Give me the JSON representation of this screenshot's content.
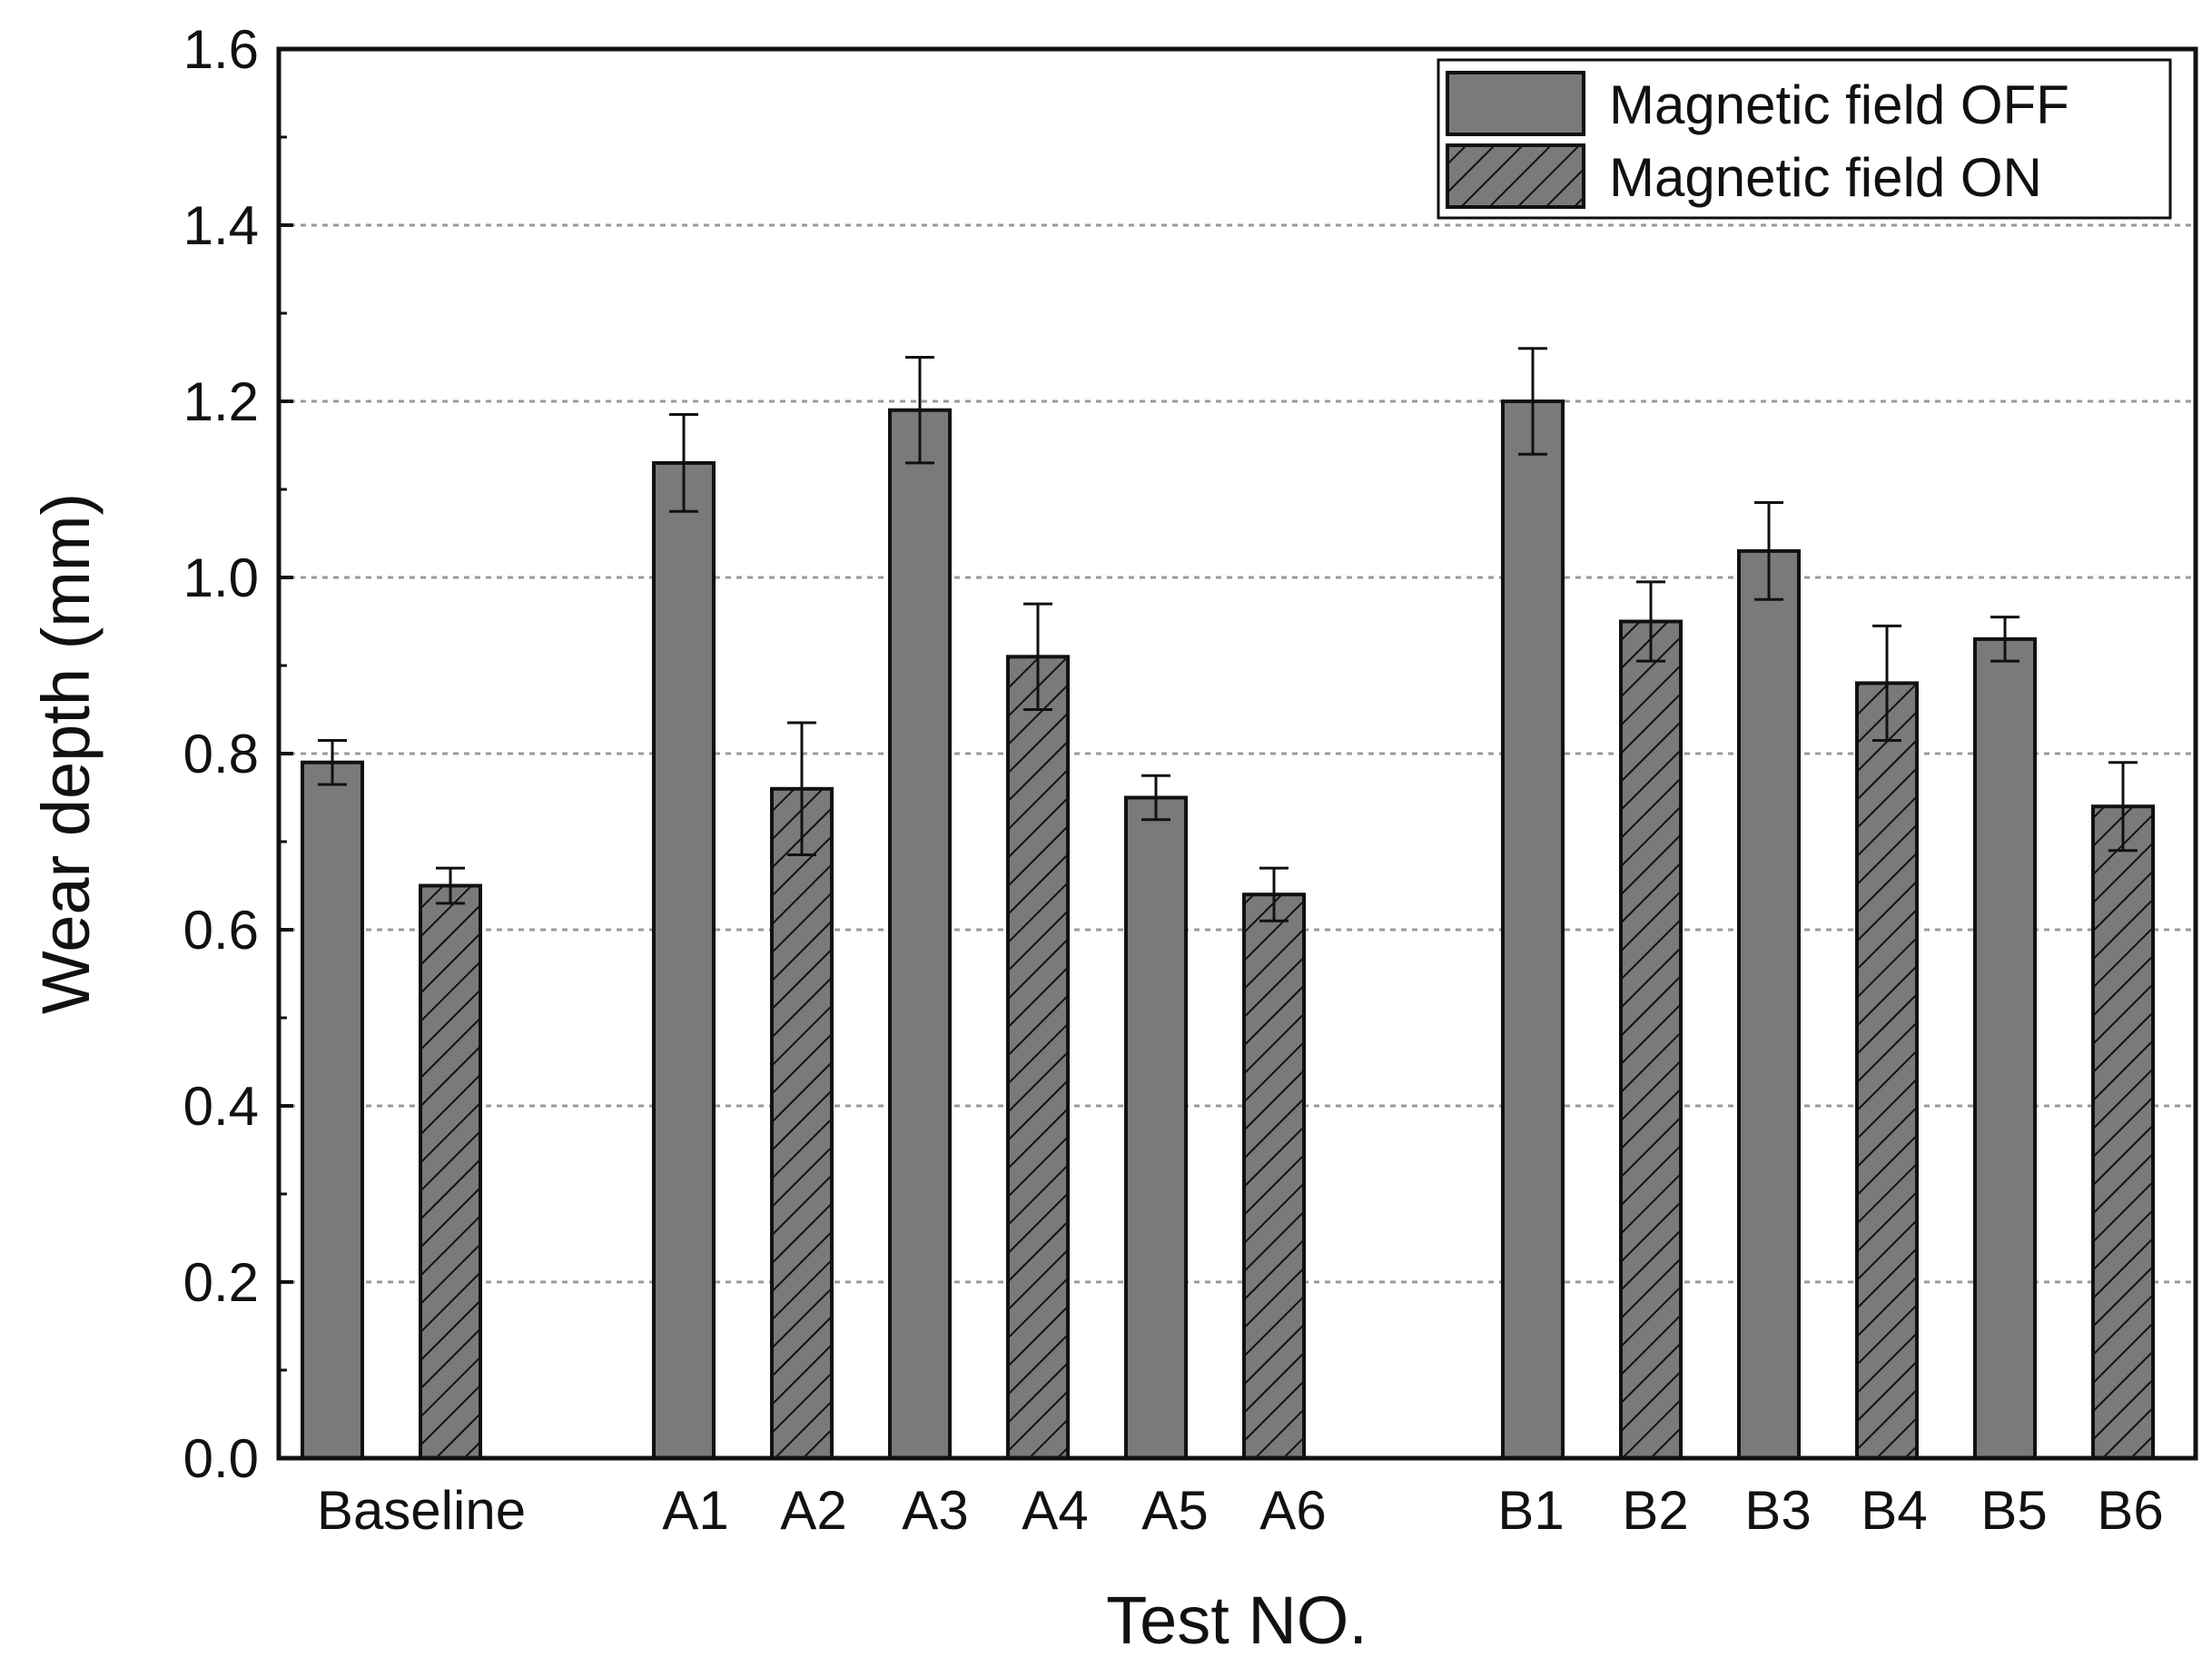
{
  "chart_data": {
    "type": "bar",
    "title": "",
    "xlabel": "Test NO.",
    "ylabel": "Wear depth (mm)",
    "ylim": [
      0,
      1.6
    ],
    "yticks": [
      "0.0",
      "0.2",
      "0.4",
      "0.6",
      "0.8",
      "1.0",
      "1.2",
      "1.4",
      "1.6"
    ],
    "grid": true,
    "legend_position": "top-right",
    "legend": [
      "Magnetic field OFF",
      "Magnetic field ON"
    ],
    "category_labels": [
      {
        "label": "Baseline",
        "group": "baseline"
      },
      {
        "label": "A1",
        "group": "A"
      },
      {
        "label": "A2",
        "group": "A"
      },
      {
        "label": "A3",
        "group": "A"
      },
      {
        "label": "A4",
        "group": "A"
      },
      {
        "label": "A5",
        "group": "A"
      },
      {
        "label": "A6",
        "group": "A"
      },
      {
        "label": "B1",
        "group": "B"
      },
      {
        "label": "B2",
        "group": "B"
      },
      {
        "label": "B3",
        "group": "B"
      },
      {
        "label": "B4",
        "group": "B"
      },
      {
        "label": "B5",
        "group": "B"
      },
      {
        "label": "B6",
        "group": "B"
      }
    ],
    "bars": [
      {
        "test": "Baseline",
        "series": "Magnetic field OFF",
        "value": 0.79,
        "error": 0.025
      },
      {
        "test": "Baseline",
        "series": "Magnetic field ON",
        "value": 0.65,
        "error": 0.02
      },
      {
        "test": "A1",
        "series": "Magnetic field OFF",
        "value": 1.13,
        "error": 0.055
      },
      {
        "test": "A2",
        "series": "Magnetic field ON",
        "value": 0.76,
        "error": 0.075
      },
      {
        "test": "A3",
        "series": "Magnetic field OFF",
        "value": 1.19,
        "error": 0.06
      },
      {
        "test": "A4",
        "series": "Magnetic field ON",
        "value": 0.91,
        "error": 0.06
      },
      {
        "test": "A5",
        "series": "Magnetic field OFF",
        "value": 0.75,
        "error": 0.025
      },
      {
        "test": "A6",
        "series": "Magnetic field ON",
        "value": 0.64,
        "error": 0.03
      },
      {
        "test": "B1",
        "series": "Magnetic field OFF",
        "value": 1.2,
        "error": 0.06
      },
      {
        "test": "B2",
        "series": "Magnetic field ON",
        "value": 0.95,
        "error": 0.045
      },
      {
        "test": "B3",
        "series": "Magnetic field OFF",
        "value": 1.03,
        "error": 0.055
      },
      {
        "test": "B4",
        "series": "Magnetic field ON",
        "value": 0.88,
        "error": 0.065
      },
      {
        "test": "B5",
        "series": "Magnetic field OFF",
        "value": 0.93,
        "error": 0.025
      },
      {
        "test": "B6",
        "series": "Magnetic field ON",
        "value": 0.74,
        "error": 0.05
      }
    ],
    "colors": {
      "bar_fill": "#7a7a7a",
      "bar_stroke": "#111111",
      "hatch": "#111111",
      "grid": "#9a9a9a",
      "axis": "#111111"
    }
  }
}
